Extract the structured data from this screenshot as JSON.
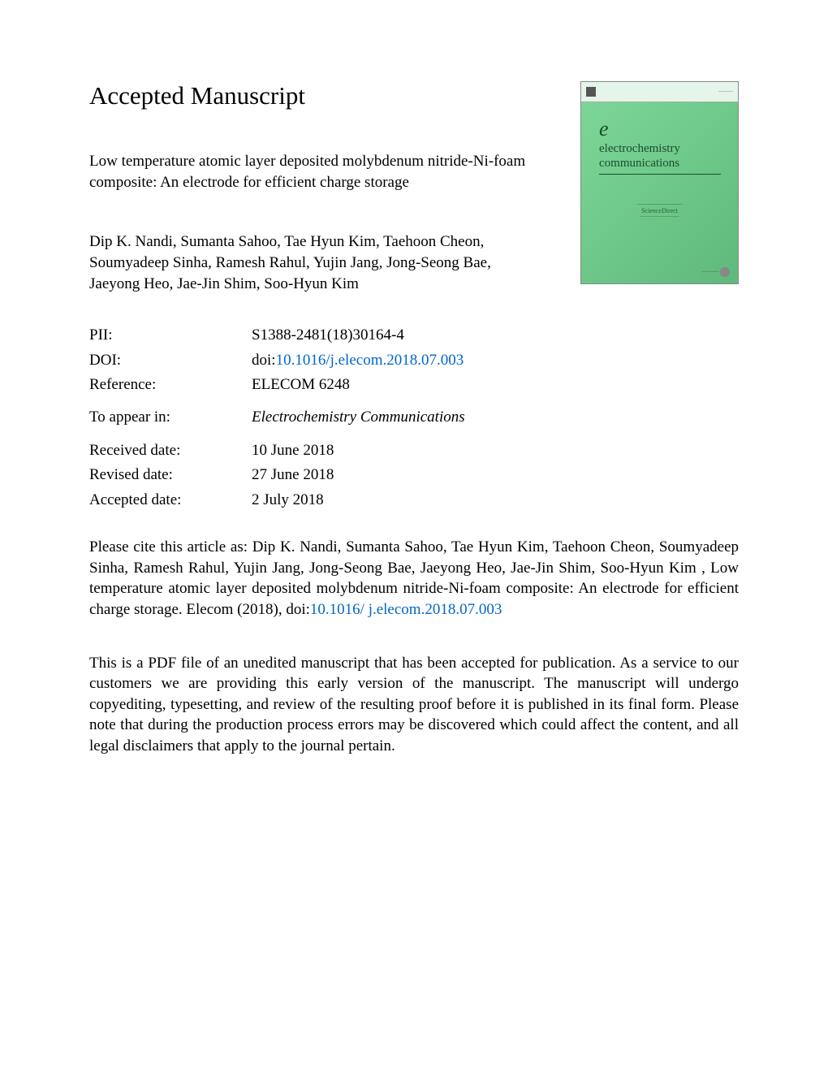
{
  "header": {
    "title": "Accepted Manuscript"
  },
  "cover": {
    "journal_letter": "e",
    "journal_name_line1": "electrochemistry",
    "journal_name_line2": "communications",
    "middle_text": "ScienceDirect",
    "colors": {
      "background_start": "#7fd89a",
      "background_mid": "#6ec98a",
      "background_end": "#5fb97c",
      "text": "#1a4d2e"
    }
  },
  "article": {
    "title": "Low temperature atomic layer deposited molybdenum nitride-Ni-foam composite: An electrode for efficient charge storage",
    "authors": "Dip K. Nandi, Sumanta Sahoo, Tae Hyun Kim, Taehoon Cheon, Soumyadeep Sinha, Ramesh Rahul, Yujin Jang, Jong-Seong Bae, Jaeyong Heo, Jae-Jin Shim, Soo-Hyun Kim"
  },
  "metadata": {
    "pii_label": "PII:",
    "pii_value": "S1388-2481(18)30164-4",
    "doi_label": "DOI:",
    "doi_prefix": "doi:",
    "doi_link": "10.1016/j.elecom.2018.07.003",
    "reference_label": "Reference:",
    "reference_value": "ELECOM 6248",
    "appear_label": "To appear in:",
    "appear_value": "Electrochemistry Communications",
    "received_label": "Received date:",
    "received_value": "10 June 2018",
    "revised_label": "Revised date:",
    "revised_value": "27 June 2018",
    "accepted_label": "Accepted date:",
    "accepted_value": "2 July 2018"
  },
  "citation": {
    "prefix": "Please cite this article as: Dip K. Nandi, Sumanta Sahoo, Tae Hyun Kim, Taehoon Cheon, Soumyadeep Sinha, Ramesh Rahul, Yujin Jang, Jong-Seong Bae, Jaeyong Heo, Jae-Jin Shim, Soo-Hyun Kim , Low temperature atomic layer deposited molybdenum nitride-Ni-foam composite: An electrode for efficient charge storage. Elecom (2018), doi:",
    "doi_link_line1": "10.1016/",
    "doi_link_line2": "j.elecom.2018.07.003"
  },
  "disclaimer": {
    "text": "This is a PDF file of an unedited manuscript that has been accepted for publication. As a service to our customers we are providing this early version of the manuscript. The manuscript will undergo copyediting, typesetting, and review of the resulting proof before it is published in its final form. Please note that during the production process errors may be discovered which could affect the content, and all legal disclaimers that apply to the journal pertain."
  },
  "styling": {
    "body_width": 1020,
    "body_height": 1320,
    "body_padding": "100px 110px 50px 110px",
    "title_fontsize": 31,
    "body_fontsize": 19,
    "link_color": "#0066cc",
    "text_color": "#000000",
    "background_color": "#ffffff"
  }
}
